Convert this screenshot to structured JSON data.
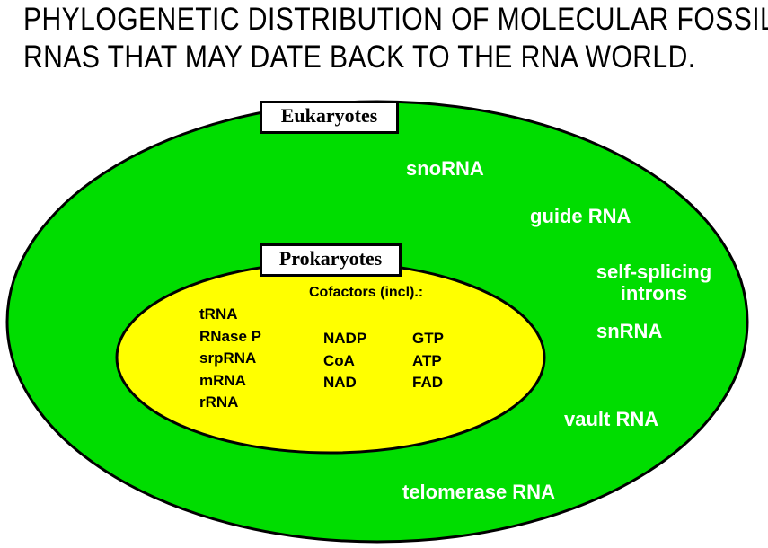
{
  "title": {
    "line1": "PHYLOGENETIC DISTRIBUTION OF MOLECULAR FOSSIL",
    "line2": "RNAS THAT MAY DATE BACK TO THE RNA WORLD."
  },
  "colors": {
    "eukaryote_fill": "#00dd00",
    "prokaryote_fill": "#ffff00",
    "outline": "#000000",
    "green_text": "#ffffff"
  },
  "eukaryotes": {
    "label": "Eukaryotes",
    "rnas": {
      "snorna": "snoRNA",
      "guide_rna": "guide RNA",
      "self_splicing_line1": "self-splicing",
      "self_splicing_line2": "introns",
      "snrna": "snRNA",
      "vault_rna": "vault RNA",
      "telomerase_rna": "telomerase RNA"
    }
  },
  "prokaryotes": {
    "label": "Prokaryotes",
    "rnas": [
      "tRNA",
      "RNase P",
      "srpRNA",
      "mRNA",
      "rRNA"
    ],
    "cofactors_heading": "Cofactors (incl).:",
    "cofactors_col1": [
      "NADP",
      "CoA",
      "NAD"
    ],
    "cofactors_col2": [
      "GTP",
      "ATP",
      "FAD"
    ]
  }
}
